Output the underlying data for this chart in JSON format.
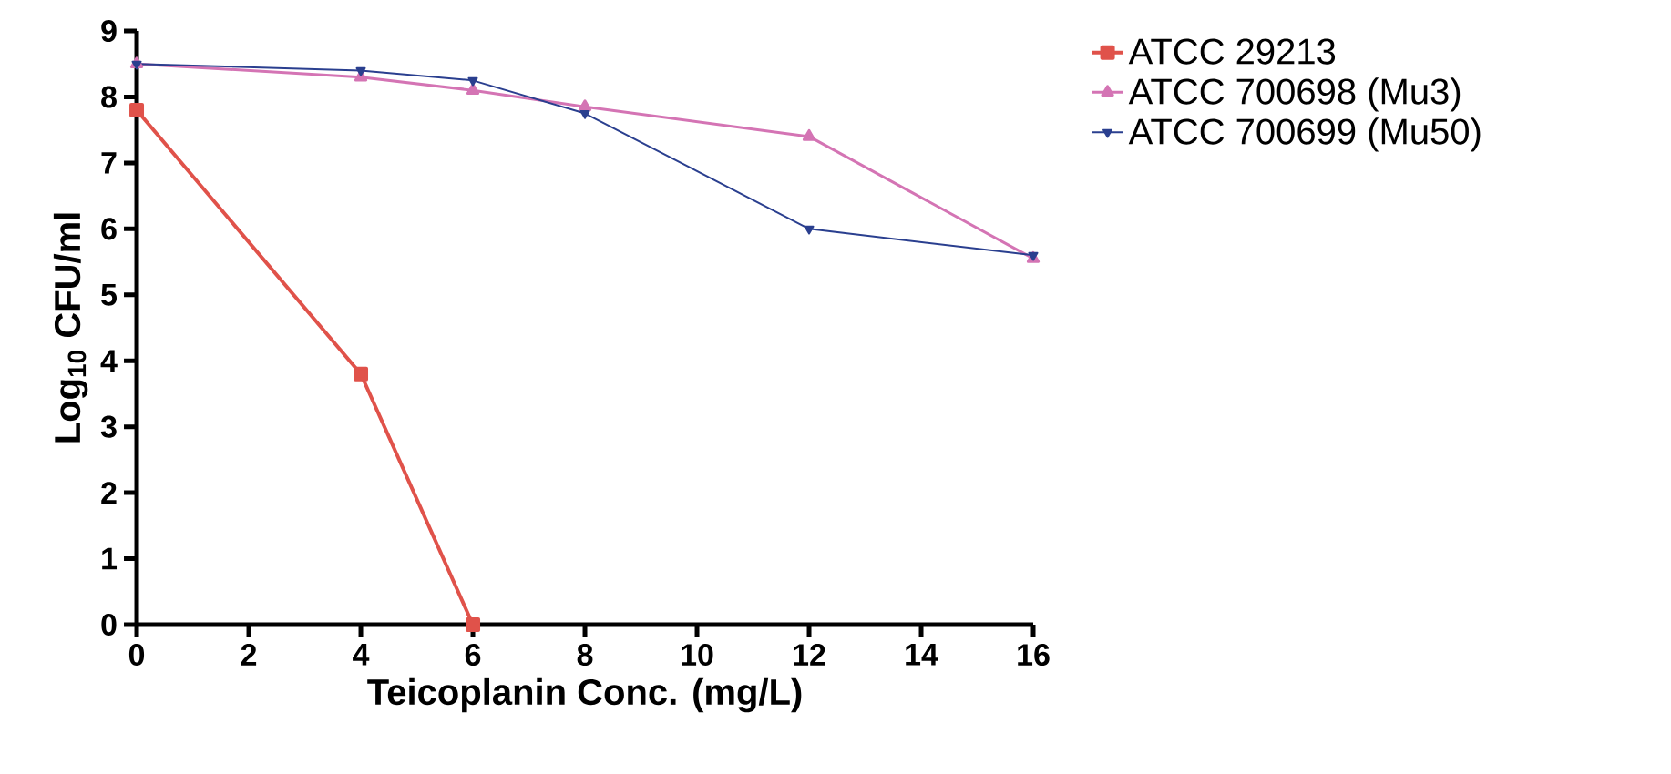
{
  "chart_data": {
    "type": "line",
    "xlabel": "Teicoplanin Conc. (mg/L)",
    "ylabel": "Log$_{10}$ CFU/ml",
    "xlim": [
      0,
      16
    ],
    "ylim": [
      0,
      9
    ],
    "xticks": [
      0,
      2,
      4,
      6,
      8,
      10,
      12,
      14,
      16
    ],
    "yticks": [
      0,
      1,
      2,
      3,
      4,
      5,
      6,
      7,
      8,
      9
    ],
    "grid": false,
    "legend": "right",
    "line_style": "solid",
    "series": [
      {
        "name": "ATCC 29213",
        "color": "#e0524a",
        "marker": "square",
        "x": [
          0,
          4,
          6
        ],
        "values": [
          7.8,
          3.8,
          0
        ]
      },
      {
        "name": "ATCC 700698 (Mu3)",
        "color": "#d474b4",
        "marker": "triangle",
        "x": [
          0,
          4,
          6,
          8,
          12,
          16
        ],
        "values": [
          8.5,
          8.3,
          8.1,
          7.85,
          7.4,
          5.55
        ]
      },
      {
        "name": "ATCC 700699 (Mu50)",
        "color": "#2a3f8f",
        "marker": "triangle-down",
        "x": [
          0,
          4,
          6,
          8,
          12,
          16
        ],
        "values": [
          8.5,
          8.4,
          8.25,
          7.75,
          6.0,
          5.6
        ]
      }
    ]
  }
}
